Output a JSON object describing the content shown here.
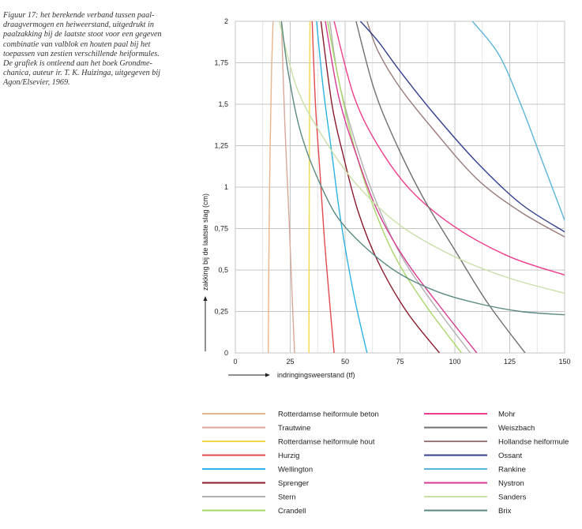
{
  "caption": {
    "lines": [
      "Figuur 17: het berekende verband tussen paal-",
      "draagvermogen en heiweerstand, uitgedrukt in",
      "paalzakking bij de laatste stoot voor een gegeven",
      "combinatie van valblok en houten paal bij het",
      "toepassen van zestien verschillende heiformules.",
      "De grafiek is ontleend aan het boek Grondme-",
      "chanica, auteur ir. T. K. Huizinga, uitgegeven bij",
      "Agon/Elsevier, 1969."
    ]
  },
  "chart_data": {
    "type": "line",
    "title": "",
    "xlabel": "indringingsweerstand (tf)",
    "ylabel": "zakking bij de laatste slag (cm)",
    "xlim": [
      0,
      150
    ],
    "ylim": [
      0,
      2
    ],
    "x_ticks": [
      "0",
      "25",
      "50",
      "75",
      "100",
      "125",
      "150"
    ],
    "y_ticks": [
      "0",
      "0,25",
      "0,5",
      "0,75",
      "1",
      "1,25",
      "1,5",
      "1,75",
      "2"
    ],
    "grid": true,
    "legend_position": "bottom",
    "series": [
      {
        "name": "Rotterdamse heiformule beton",
        "color": "#e8b48c",
        "points": [
          [
            15,
            0
          ],
          [
            15.3,
            0.6
          ],
          [
            15.8,
            1.2
          ],
          [
            16.5,
            1.7
          ],
          [
            17.2,
            2.0
          ]
        ]
      },
      {
        "name": "Trautwine",
        "color": "#d8a898",
        "points": [
          [
            27,
            0
          ],
          [
            26,
            0.3
          ],
          [
            24.5,
            0.8
          ],
          [
            22.5,
            1.4
          ],
          [
            21,
            2.0
          ]
        ]
      },
      {
        "name": "Rotterdamse heiformule hout",
        "color": "#f3d84a",
        "points": [
          [
            33.5,
            0
          ],
          [
            33.6,
            0.5
          ],
          [
            33.7,
            1.0
          ],
          [
            33.8,
            1.5
          ],
          [
            34,
            2.0
          ]
        ]
      },
      {
        "name": "Hurzig",
        "color": "#e24a4e",
        "points": [
          [
            45,
            0
          ],
          [
            43,
            0.3
          ],
          [
            40.5,
            0.7
          ],
          [
            38.5,
            1.1
          ],
          [
            36.5,
            1.5
          ],
          [
            35,
            2.0
          ]
        ]
      },
      {
        "name": "Wellington",
        "color": "#2cb4e6",
        "points": [
          [
            60,
            0
          ],
          [
            54,
            0.35
          ],
          [
            48,
            0.8
          ],
          [
            44,
            1.2
          ],
          [
            40,
            1.6
          ],
          [
            37,
            2.0
          ]
        ]
      },
      {
        "name": "Sprenger",
        "color": "#8a1a2a",
        "points": [
          [
            93,
            0
          ],
          [
            78,
            0.25
          ],
          [
            65,
            0.55
          ],
          [
            56,
            0.85
          ],
          [
            49,
            1.2
          ],
          [
            44,
            1.5
          ],
          [
            39,
            2.0
          ]
        ]
      },
      {
        "name": "Stern",
        "color": "#b0b0b0",
        "points": [
          [
            107,
            0
          ],
          [
            90,
            0.3
          ],
          [
            75,
            0.6
          ],
          [
            63,
            0.95
          ],
          [
            54,
            1.3
          ],
          [
            47,
            1.65
          ],
          [
            43,
            2.0
          ]
        ]
      },
      {
        "name": "Crandell",
        "color": "#a8d86a",
        "points": [
          [
            103,
            0
          ],
          [
            86,
            0.3
          ],
          [
            72,
            0.6
          ],
          [
            61,
            0.95
          ],
          [
            53,
            1.3
          ],
          [
            47,
            1.65
          ],
          [
            42,
            2.0
          ]
        ]
      },
      {
        "name": "Mohr",
        "color": "#f03c8c",
        "points": [
          [
            150,
            0.47
          ],
          [
            125,
            0.58
          ],
          [
            100,
            0.76
          ],
          [
            80,
            0.98
          ],
          [
            65,
            1.25
          ],
          [
            54,
            1.55
          ],
          [
            45,
            2.0
          ]
        ]
      },
      {
        "name": "Weiszbach",
        "color": "#707070",
        "points": [
          [
            132,
            0
          ],
          [
            115,
            0.3
          ],
          [
            100,
            0.62
          ],
          [
            85,
            0.95
          ],
          [
            72,
            1.3
          ],
          [
            63,
            1.6
          ],
          [
            55,
            2.0
          ]
        ]
      },
      {
        "name": "Hollandse heiformule",
        "color": "#9a7a78",
        "points": [
          [
            150,
            0.7
          ],
          [
            130,
            0.85
          ],
          [
            110,
            1.05
          ],
          [
            90,
            1.35
          ],
          [
            75,
            1.6
          ],
          [
            65,
            1.82
          ],
          [
            60,
            2.0
          ]
        ]
      },
      {
        "name": "Ossant",
        "color": "#34408e",
        "points": [
          [
            150,
            0.73
          ],
          [
            130,
            0.9
          ],
          [
            110,
            1.15
          ],
          [
            90,
            1.45
          ],
          [
            75,
            1.7
          ],
          [
            65,
            1.88
          ],
          [
            57,
            2.0
          ]
        ]
      },
      {
        "name": "Rankine",
        "color": "#5ab4d8",
        "points": [
          [
            150,
            0.8
          ],
          [
            140,
            1.15
          ],
          [
            130,
            1.5
          ],
          [
            120,
            1.8
          ],
          [
            108,
            2.0
          ]
        ]
      },
      {
        "name": "Nystron",
        "color": "#d83890",
        "points": [
          [
            110,
            0
          ],
          [
            95,
            0.25
          ],
          [
            78,
            0.55
          ],
          [
            65,
            0.85
          ],
          [
            55,
            1.2
          ],
          [
            47,
            1.55
          ],
          [
            41,
            2.0
          ]
        ]
      },
      {
        "name": "Sanders",
        "color": "#c8e0a8",
        "points": [
          [
            150,
            0.36
          ],
          [
            125,
            0.45
          ],
          [
            100,
            0.58
          ],
          [
            75,
            0.77
          ],
          [
            55,
            1.02
          ],
          [
            40,
            1.3
          ],
          [
            28,
            1.6
          ],
          [
            20,
            2.0
          ]
        ]
      },
      {
        "name": "Brix",
        "color": "#5a8a82",
        "points": [
          [
            150,
            0.23
          ],
          [
            130,
            0.25
          ],
          [
            110,
            0.3
          ],
          [
            90,
            0.38
          ],
          [
            70,
            0.52
          ],
          [
            50,
            0.76
          ],
          [
            40,
            0.98
          ],
          [
            30,
            1.32
          ],
          [
            24,
            1.7
          ],
          [
            21,
            2.0
          ]
        ]
      }
    ]
  }
}
